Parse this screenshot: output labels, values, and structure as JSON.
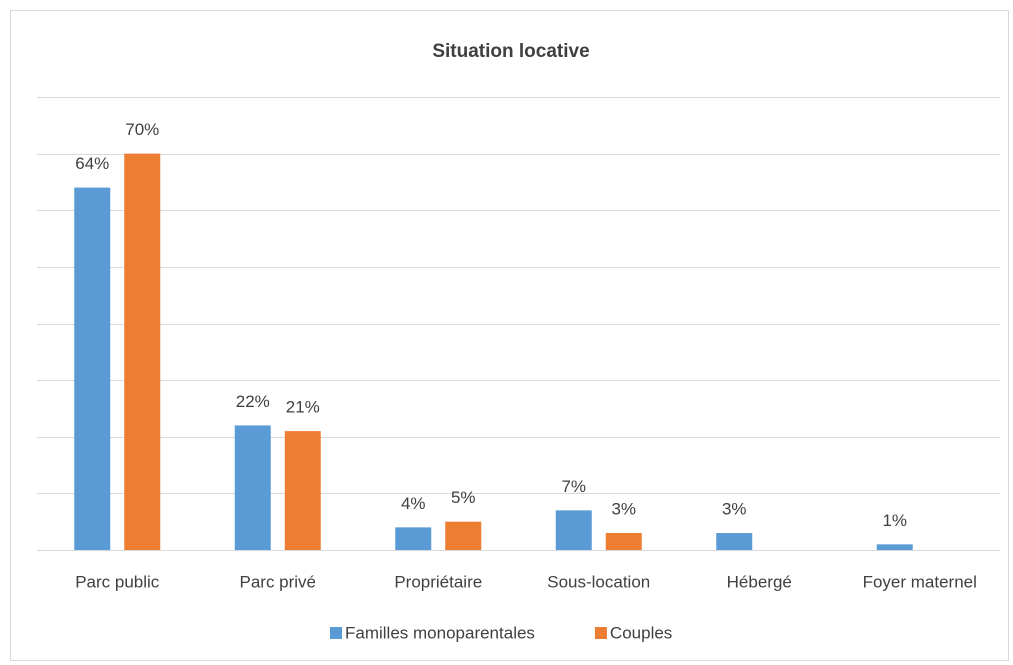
{
  "chart_data": {
    "type": "bar",
    "title": "Situation locative",
    "categories": [
      "Parc public",
      "Parc privé",
      "Propriétaire",
      "Sous-location",
      "Hébergé",
      "Foyer maternel"
    ],
    "series": [
      {
        "name": "Familles monoparentales",
        "color": "#5b9bd5",
        "values": [
          64,
          22,
          4,
          7,
          3,
          1
        ],
        "value_labels": [
          "64%",
          "22%",
          "4%",
          "7%",
          "3%",
          "1%"
        ]
      },
      {
        "name": "Couples",
        "color": "#ed7d31",
        "values": [
          70,
          21,
          5,
          3,
          null,
          null
        ],
        "value_labels": [
          "70%",
          "21%",
          "5%",
          "3%",
          null,
          null
        ]
      }
    ],
    "ylim": [
      0,
      80
    ],
    "yticks": [
      0,
      10,
      20,
      30,
      40,
      50,
      60,
      70,
      80
    ],
    "grid": true,
    "legend": "bottom"
  }
}
